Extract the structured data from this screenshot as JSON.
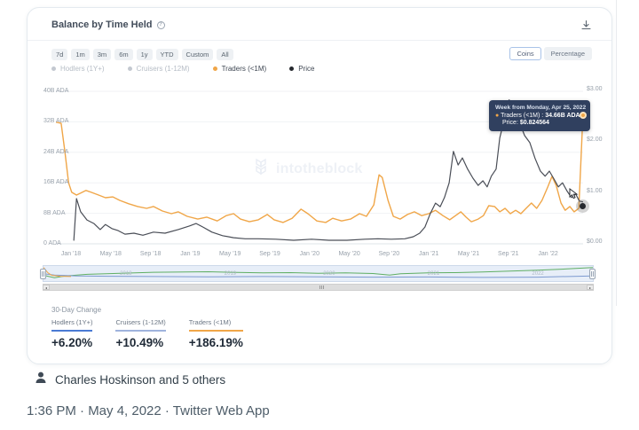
{
  "card": {
    "title": "Balance by Time Held",
    "info_icon": "?",
    "toolbar": {
      "ranges": [
        "7d",
        "1m",
        "3m",
        "6m",
        "1y",
        "YTD",
        "Custom",
        "All"
      ],
      "unit_buttons": [
        {
          "label": "Coins",
          "active": true
        },
        {
          "label": "Percentage",
          "active": false
        }
      ]
    },
    "legend": [
      {
        "label": "Hodlers (1Y+)",
        "color": "#c3c8d0",
        "active": false
      },
      {
        "label": "Cruisers (1-12M)",
        "color": "#c3c8d0",
        "active": false
      },
      {
        "label": "Traders (<1M)",
        "color": "#f0a648",
        "active": true
      },
      {
        "label": "Price",
        "color": "#26292e",
        "active": true
      }
    ],
    "watermark": "intotheblock",
    "tooltip": {
      "title": "Week from Monday, Apr 25, 2022",
      "series_bullet": "●",
      "series_label": "Traders (<1M) :",
      "series_value": "34.66B ADA",
      "price_label": "Price:",
      "price_value": "$0.824564"
    },
    "thirty_day": {
      "title": "30-Day Change",
      "items": [
        {
          "label": "Hodlers (1Y+)",
          "value": "+6.20%",
          "underline": "#4a7bd4"
        },
        {
          "label": "Cruisers (1-12M)",
          "value": "+10.49%",
          "underline": "#9fb3dd"
        },
        {
          "label": "Traders (<1M)",
          "value": "+186.19%",
          "underline": "#f0a648"
        }
      ]
    },
    "scrollbar": {
      "left_arrow": "◂",
      "right_arrow": "▸"
    }
  },
  "chart_data": {
    "type": "line",
    "title": "Balance by Time Held",
    "x_ticks": [
      "Jan '18",
      "May '18",
      "Sep '18",
      "Jan '19",
      "May '19",
      "Sep '19",
      "Jan '20",
      "May '20",
      "Sep '20",
      "Jan '21",
      "May '21",
      "Sep '21",
      "Jan '22"
    ],
    "y_left": {
      "labels_bottom_up": [
        "0 ADA",
        "8B ADA",
        "16B ADA",
        "24B ADA",
        "32B ADA",
        "40B ADA"
      ],
      "min": 0,
      "max": 40,
      "unit": "B ADA"
    },
    "y_right": {
      "labels_bottom_up": [
        "$0.00",
        "$1.00",
        "$2.00",
        "$3.00"
      ],
      "min": 0,
      "max": 3,
      "unit": "$"
    },
    "grid": true,
    "legend_position": "top-left",
    "series": [
      {
        "name": "Traders (<1M)",
        "axis": "left",
        "color": "#f0a648",
        "width": 1.4,
        "points": [
          [
            0,
            31.9
          ],
          [
            0.01,
            31.6
          ],
          [
            0.017,
            24.2
          ],
          [
            0.024,
            16
          ],
          [
            0.03,
            13.5
          ],
          [
            0.039,
            12.8
          ],
          [
            0.047,
            13.3
          ],
          [
            0.057,
            14
          ],
          [
            0.067,
            13.5
          ],
          [
            0.081,
            12.8
          ],
          [
            0.094,
            12.1
          ],
          [
            0.108,
            12.3
          ],
          [
            0.121,
            11.4
          ],
          [
            0.138,
            10.5
          ],
          [
            0.155,
            9.8
          ],
          [
            0.172,
            9.3
          ],
          [
            0.185,
            9.8
          ],
          [
            0.202,
            8.6
          ],
          [
            0.219,
            7.9
          ],
          [
            0.232,
            8.4
          ],
          [
            0.249,
            7.2
          ],
          [
            0.269,
            6.5
          ],
          [
            0.286,
            7
          ],
          [
            0.306,
            6
          ],
          [
            0.323,
            7.4
          ],
          [
            0.337,
            7.9
          ],
          [
            0.35,
            6.5
          ],
          [
            0.367,
            5.8
          ],
          [
            0.384,
            6.3
          ],
          [
            0.401,
            7.7
          ],
          [
            0.414,
            6.3
          ],
          [
            0.431,
            5.6
          ],
          [
            0.448,
            6.7
          ],
          [
            0.465,
            9.1
          ],
          [
            0.478,
            7.9
          ],
          [
            0.495,
            6
          ],
          [
            0.512,
            5.6
          ],
          [
            0.525,
            6.7
          ],
          [
            0.542,
            6
          ],
          [
            0.559,
            6.5
          ],
          [
            0.576,
            7.9
          ],
          [
            0.589,
            7.2
          ],
          [
            0.603,
            10.2
          ],
          [
            0.613,
            18.1
          ],
          [
            0.619,
            17.4
          ],
          [
            0.63,
            11.4
          ],
          [
            0.64,
            7.2
          ],
          [
            0.653,
            6.5
          ],
          [
            0.667,
            7.7
          ],
          [
            0.68,
            8.4
          ],
          [
            0.694,
            7.4
          ],
          [
            0.707,
            7.9
          ],
          [
            0.72,
            8.8
          ],
          [
            0.734,
            7.4
          ],
          [
            0.747,
            6.3
          ],
          [
            0.758,
            7.4
          ],
          [
            0.768,
            8.4
          ],
          [
            0.778,
            7
          ],
          [
            0.788,
            5.8
          ],
          [
            0.801,
            6.5
          ],
          [
            0.811,
            7.4
          ],
          [
            0.821,
            10
          ],
          [
            0.832,
            9.8
          ],
          [
            0.842,
            8.4
          ],
          [
            0.852,
            9.3
          ],
          [
            0.862,
            7.9
          ],
          [
            0.872,
            8.8
          ],
          [
            0.882,
            7.9
          ],
          [
            0.892,
            9.3
          ],
          [
            0.902,
            10.7
          ],
          [
            0.912,
            9.3
          ],
          [
            0.922,
            11.4
          ],
          [
            0.933,
            14.9
          ],
          [
            0.941,
            17.7
          ],
          [
            0.949,
            15.3
          ],
          [
            0.958,
            10.7
          ],
          [
            0.966,
            8.8
          ],
          [
            0.975,
            9.8
          ],
          [
            0.983,
            8.4
          ],
          [
            0.992,
            9.3
          ],
          [
            1,
            34.66
          ]
        ]
      },
      {
        "name": "Price",
        "axis": "right",
        "color": "#4a4e57",
        "width": 1.2,
        "points": [
          [
            0.034,
            0.07
          ],
          [
            0.039,
            0.89
          ],
          [
            0.047,
            0.63
          ],
          [
            0.059,
            0.47
          ],
          [
            0.072,
            0.4
          ],
          [
            0.084,
            0.28
          ],
          [
            0.094,
            0.38
          ],
          [
            0.106,
            0.3
          ],
          [
            0.118,
            0.26
          ],
          [
            0.131,
            0.19
          ],
          [
            0.148,
            0.21
          ],
          [
            0.165,
            0.17
          ],
          [
            0.185,
            0.23
          ],
          [
            0.207,
            0.21
          ],
          [
            0.232,
            0.28
          ],
          [
            0.253,
            0.35
          ],
          [
            0.266,
            0.4
          ],
          [
            0.279,
            0.33
          ],
          [
            0.296,
            0.23
          ],
          [
            0.316,
            0.16
          ],
          [
            0.337,
            0.12
          ],
          [
            0.359,
            0.1
          ],
          [
            0.384,
            0.1
          ],
          [
            0.417,
            0.09
          ],
          [
            0.451,
            0.07
          ],
          [
            0.485,
            0.09
          ],
          [
            0.518,
            0.07
          ],
          [
            0.552,
            0.07
          ],
          [
            0.586,
            0.09
          ],
          [
            0.611,
            0.1
          ],
          [
            0.636,
            0.09
          ],
          [
            0.662,
            0.1
          ],
          [
            0.678,
            0.14
          ],
          [
            0.69,
            0.21
          ],
          [
            0.7,
            0.33
          ],
          [
            0.71,
            0.59
          ],
          [
            0.72,
            0.8
          ],
          [
            0.729,
            0.73
          ],
          [
            0.737,
            0.91
          ],
          [
            0.746,
            1.2
          ],
          [
            0.754,
            1.82
          ],
          [
            0.763,
            1.55
          ],
          [
            0.771,
            1.69
          ],
          [
            0.781,
            1.47
          ],
          [
            0.791,
            1.29
          ],
          [
            0.801,
            1.15
          ],
          [
            0.81,
            1.24
          ],
          [
            0.818,
            1.12
          ],
          [
            0.826,
            1.33
          ],
          [
            0.835,
            1.47
          ],
          [
            0.842,
            2.08
          ],
          [
            0.848,
            2.34
          ],
          [
            0.855,
            2.78
          ],
          [
            0.86,
            2.83
          ],
          [
            0.867,
            2.51
          ],
          [
            0.874,
            2.65
          ],
          [
            0.88,
            2.37
          ],
          [
            0.889,
            2.13
          ],
          [
            0.899,
            1.99
          ],
          [
            0.909,
            1.68
          ],
          [
            0.919,
            1.43
          ],
          [
            0.928,
            1.33
          ],
          [
            0.936,
            1.43
          ],
          [
            0.944,
            1.29
          ],
          [
            0.953,
            1.12
          ],
          [
            0.961,
            1.2
          ],
          [
            0.97,
            1.03
          ],
          [
            0.978,
            0.91
          ],
          [
            0.986,
            0.98
          ],
          [
            0.993,
            0.84
          ],
          [
            1,
            0.824
          ]
        ]
      }
    ],
    "highlighted_point": {
      "series": "Traders (<1M)",
      "x_label": "Week from Monday, Apr 25, 2022",
      "value": 34.66,
      "price": 0.824564
    },
    "navigator": {
      "year_labels": [
        {
          "label": "2018",
          "x": 0.15
        },
        {
          "label": "2019",
          "x": 0.34
        },
        {
          "label": "2020",
          "x": 0.52
        },
        {
          "label": "2021",
          "x": 0.71
        },
        {
          "label": "2022",
          "x": 0.9
        }
      ],
      "series": [
        {
          "name": "hodlers-nav",
          "color": "#5fae63",
          "points": [
            [
              0,
              0.62
            ],
            [
              0.02,
              0.78
            ],
            [
              0.04,
              0.66
            ],
            [
              0.08,
              0.55
            ],
            [
              0.14,
              0.48
            ],
            [
              0.2,
              0.42
            ],
            [
              0.26,
              0.4
            ],
            [
              0.3,
              0.38
            ],
            [
              0.34,
              0.42
            ],
            [
              0.4,
              0.46
            ],
            [
              0.45,
              0.44
            ],
            [
              0.5,
              0.48
            ],
            [
              0.55,
              0.46
            ],
            [
              0.6,
              0.5
            ],
            [
              0.63,
              0.6
            ],
            [
              0.65,
              0.52
            ],
            [
              0.7,
              0.46
            ],
            [
              0.75,
              0.44
            ],
            [
              0.8,
              0.4
            ],
            [
              0.85,
              0.34
            ],
            [
              0.9,
              0.28
            ],
            [
              0.95,
              0.2
            ],
            [
              1,
              0.1
            ]
          ]
        },
        {
          "name": "cruisers-nav",
          "color": "#7d9ad0",
          "points": [
            [
              0,
              0.52
            ],
            [
              0.02,
              0.6
            ],
            [
              0.06,
              0.66
            ],
            [
              0.12,
              0.68
            ],
            [
              0.2,
              0.7
            ],
            [
              0.3,
              0.72
            ],
            [
              0.4,
              0.7
            ],
            [
              0.5,
              0.72
            ],
            [
              0.6,
              0.74
            ],
            [
              0.7,
              0.73
            ],
            [
              0.8,
              0.76
            ],
            [
              0.9,
              0.74
            ],
            [
              1,
              0.66
            ]
          ]
        },
        {
          "name": "traders-nav",
          "color": "#f0a648",
          "points": [
            [
              0,
              0.1
            ],
            [
              0.008,
              0.45
            ],
            [
              0.015,
              0.62
            ],
            [
              0.03,
              0.68
            ],
            [
              0.05,
              0.7
            ]
          ]
        }
      ]
    }
  },
  "footer": {
    "liked_by": "Charles Hoskinson and 5 others",
    "timestamp": "1:36 PM · May 4, 2022 · Twitter Web App"
  }
}
